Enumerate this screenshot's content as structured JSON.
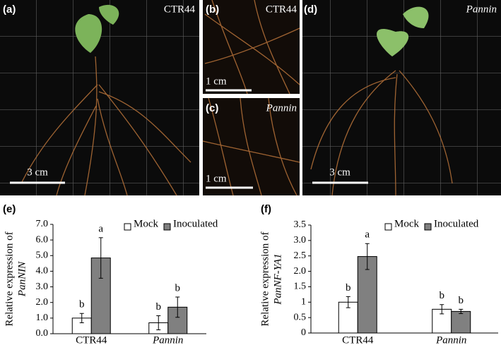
{
  "panels": [
    {
      "label": "(a)",
      "caption": "CTR44",
      "scale": "3 cm"
    },
    {
      "label": "(b)",
      "caption": "CTR44",
      "scale": "1 cm"
    },
    {
      "label": "(c)",
      "caption": "Pannin",
      "scale": "1 cm"
    },
    {
      "label": "(d)",
      "caption": "Pannin",
      "scale": "3 cm"
    }
  ],
  "chart_data": [
    {
      "type": "bar",
      "panel": "(e)",
      "ylabel": [
        "Relative expression of",
        "PanNIN"
      ],
      "categories": [
        "CTR44",
        "Pannin"
      ],
      "series": [
        {
          "name": "Mock",
          "color": "#ffffff",
          "values": [
            1.0,
            0.7
          ],
          "errors": [
            0.3,
            0.45
          ],
          "letters": [
            "b",
            "b"
          ]
        },
        {
          "name": "Inoculated",
          "color": "#808080",
          "values": [
            4.85,
            1.7
          ],
          "errors": [
            1.3,
            0.65
          ],
          "letters": [
            "a",
            "b"
          ]
        }
      ],
      "ylim": [
        0,
        7
      ],
      "yticks": [
        {
          "value": 0,
          "label": "0.0"
        },
        {
          "value": 1,
          "label": "1.0"
        },
        {
          "value": 2,
          "label": "2.0"
        },
        {
          "value": 3,
          "label": "3.0"
        },
        {
          "value": 4,
          "label": "4.0"
        },
        {
          "value": 5,
          "label": "5.0"
        },
        {
          "value": 6,
          "label": "6.0"
        },
        {
          "value": 7,
          "label": "7.0"
        }
      ]
    },
    {
      "type": "bar",
      "panel": "(f)",
      "ylabel": [
        "Relative expression of",
        "PanNF-YA1"
      ],
      "categories": [
        "CTR44",
        "Pannin"
      ],
      "series": [
        {
          "name": "Mock",
          "color": "#ffffff",
          "values": [
            1.0,
            0.77
          ],
          "errors": [
            0.18,
            0.15
          ],
          "letters": [
            "b",
            "b"
          ]
        },
        {
          "name": "Inoculated",
          "color": "#808080",
          "values": [
            2.48,
            0.7
          ],
          "errors": [
            0.42,
            0.07
          ],
          "letters": [
            "a",
            "b"
          ]
        }
      ],
      "ylim": [
        0,
        3.5
      ],
      "yticks": [
        0,
        0.5,
        1,
        {
          "value": 1.5,
          "label": "1.5"
        },
        {
          "value": 2,
          "label": "2.0"
        },
        {
          "value": 2.5,
          "label": "2.5"
        },
        {
          "value": 3,
          "label": "3.0"
        },
        {
          "value": 3.5,
          "label": "3.5"
        }
      ]
    }
  ]
}
